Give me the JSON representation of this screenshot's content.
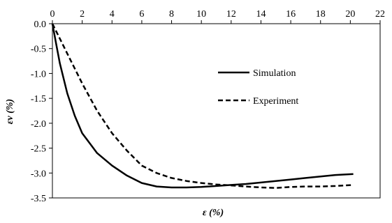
{
  "chart_data": {
    "type": "line",
    "title": "",
    "xlabel": "ε (%)",
    "ylabel": "εv (%)",
    "xlim": [
      0,
      22
    ],
    "ylim": [
      -3.5,
      0
    ],
    "x_ticks": [
      0,
      2,
      4,
      6,
      8,
      10,
      12,
      14,
      16,
      18,
      20,
      22
    ],
    "y_ticks": [
      0,
      -0.5,
      -1,
      -1.5,
      -2,
      -2.5,
      -3,
      -3.5
    ],
    "x_tick_labels": [
      "0",
      "2",
      "4",
      "6",
      "8",
      "10",
      "12",
      "14",
      "16",
      "18",
      "20",
      "22"
    ],
    "y_tick_labels": [
      "0.0",
      "-0.5",
      "-1.0",
      "-1.5",
      "-2.0",
      "-2.5",
      "-3.0",
      "-3.5"
    ],
    "x_axis_position": "top",
    "grid": false,
    "legend_position": "upper-right-inside",
    "series": [
      {
        "name": "Simulation",
        "style": "solid",
        "color": "#000000",
        "points": [
          [
            0,
            0
          ],
          [
            0.25,
            -0.4
          ],
          [
            0.5,
            -0.8
          ],
          [
            1,
            -1.4
          ],
          [
            1.5,
            -1.85
          ],
          [
            2,
            -2.2
          ],
          [
            3,
            -2.6
          ],
          [
            4,
            -2.85
          ],
          [
            5,
            -3.05
          ],
          [
            6,
            -3.2
          ],
          [
            7,
            -3.27
          ],
          [
            8,
            -3.29
          ],
          [
            9,
            -3.29
          ],
          [
            10,
            -3.28
          ],
          [
            11,
            -3.26
          ],
          [
            12,
            -3.24
          ],
          [
            13,
            -3.22
          ],
          [
            14,
            -3.19
          ],
          [
            15,
            -3.16
          ],
          [
            16,
            -3.13
          ],
          [
            17,
            -3.1
          ],
          [
            18,
            -3.07
          ],
          [
            19,
            -3.04
          ],
          [
            20.2,
            -3.02
          ]
        ]
      },
      {
        "name": "Experiment",
        "style": "dashed",
        "color": "#000000",
        "points": [
          [
            0,
            0
          ],
          [
            1,
            -0.6
          ],
          [
            2,
            -1.2
          ],
          [
            3,
            -1.75
          ],
          [
            4,
            -2.2
          ],
          [
            5,
            -2.55
          ],
          [
            6,
            -2.85
          ],
          [
            7,
            -3.0
          ],
          [
            8,
            -3.1
          ],
          [
            9,
            -3.16
          ],
          [
            10,
            -3.2
          ],
          [
            11,
            -3.23
          ],
          [
            12,
            -3.25
          ],
          [
            13,
            -3.27
          ],
          [
            14,
            -3.29
          ],
          [
            15,
            -3.3
          ],
          [
            16,
            -3.28
          ],
          [
            17,
            -3.27
          ],
          [
            18,
            -3.27
          ],
          [
            19,
            -3.26
          ],
          [
            20.2,
            -3.24
          ]
        ]
      }
    ]
  }
}
